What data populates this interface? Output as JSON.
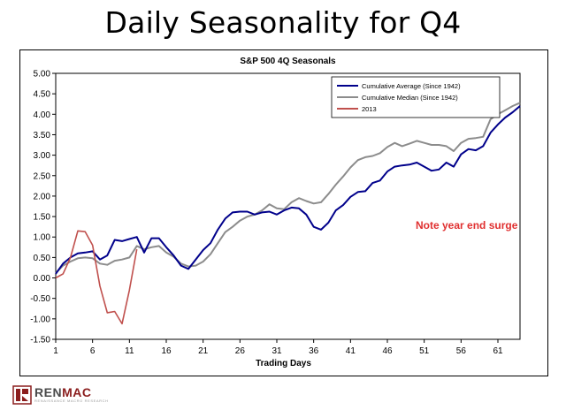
{
  "slide_title": "Daily Seasonality for Q4",
  "logo": {
    "name_part1": "REN",
    "name_part2": "MAC",
    "tagline": "RENAISSANCE MACRO RESEARCH"
  },
  "colors": {
    "average": "#00008b",
    "median": "#8c8c8c",
    "year2013": "#c0504d",
    "annotation": "#e03030"
  },
  "chart_data": {
    "type": "line",
    "title": "S&P 500 4Q Seasonals",
    "xlabel": "Trading Days",
    "ylabel": "",
    "xlim": [
      1,
      64
    ],
    "ylim": [
      -1.5,
      5.0
    ],
    "y_ticks": [
      "5.00",
      "4.50",
      "4.00",
      "3.50",
      "3.00",
      "2.50",
      "2.00",
      "1.50",
      "1.00",
      "0.50",
      "0.00",
      "-0.50",
      "-1.00",
      "-1.50"
    ],
    "x_ticks": [
      "1",
      "6",
      "11",
      "16",
      "21",
      "26",
      "31",
      "36",
      "41",
      "46",
      "51",
      "56",
      "61"
    ],
    "annotation": "Note year end surge",
    "legend": [
      "Cumulative Average (Since 1942)",
      "Cumulative Median (Since 1942)",
      "2013"
    ],
    "series": [
      {
        "name": "Cumulative Average (Since 1942)",
        "x": [
          1,
          2,
          3,
          4,
          5,
          6,
          7,
          8,
          9,
          10,
          11,
          12,
          13,
          14,
          15,
          16,
          17,
          18,
          19,
          20,
          21,
          22,
          23,
          24,
          25,
          26,
          27,
          28,
          29,
          30,
          31,
          32,
          33,
          34,
          35,
          36,
          37,
          38,
          39,
          40,
          41,
          42,
          43,
          44,
          45,
          46,
          47,
          48,
          49,
          50,
          51,
          52,
          53,
          54,
          55,
          56,
          57,
          58,
          59,
          60,
          61,
          62,
          63,
          64
        ],
        "values": [
          0.1,
          0.35,
          0.5,
          0.6,
          0.62,
          0.65,
          0.45,
          0.55,
          0.93,
          0.9,
          0.95,
          1.0,
          0.62,
          0.97,
          0.97,
          0.75,
          0.55,
          0.3,
          0.22,
          0.45,
          0.68,
          0.85,
          1.18,
          1.45,
          1.6,
          1.62,
          1.62,
          1.55,
          1.6,
          1.62,
          1.55,
          1.65,
          1.72,
          1.7,
          1.55,
          1.25,
          1.18,
          1.35,
          1.65,
          1.78,
          1.98,
          2.1,
          2.12,
          2.32,
          2.38,
          2.6,
          2.72,
          2.75,
          2.77,
          2.82,
          2.72,
          2.62,
          2.65,
          2.82,
          2.72,
          3.02,
          3.15,
          3.12,
          3.22,
          3.55,
          3.75,
          3.92,
          4.05,
          4.2
        ]
      },
      {
        "name": "Cumulative Median (Since 1942)",
        "x": [
          1,
          2,
          3,
          4,
          5,
          6,
          7,
          8,
          9,
          10,
          11,
          12,
          13,
          14,
          15,
          16,
          17,
          18,
          19,
          20,
          21,
          22,
          23,
          24,
          25,
          26,
          27,
          28,
          29,
          30,
          31,
          32,
          33,
          34,
          35,
          36,
          37,
          38,
          39,
          40,
          41,
          42,
          43,
          44,
          45,
          46,
          47,
          48,
          49,
          50,
          51,
          52,
          53,
          54,
          55,
          56,
          57,
          58,
          59,
          60,
          61,
          62,
          63,
          64
        ],
        "values": [
          0.12,
          0.3,
          0.4,
          0.48,
          0.5,
          0.48,
          0.35,
          0.32,
          0.42,
          0.45,
          0.5,
          0.78,
          0.7,
          0.75,
          0.78,
          0.62,
          0.52,
          0.35,
          0.28,
          0.3,
          0.4,
          0.58,
          0.85,
          1.12,
          1.25,
          1.4,
          1.5,
          1.55,
          1.65,
          1.8,
          1.7,
          1.68,
          1.85,
          1.95,
          1.88,
          1.82,
          1.85,
          2.05,
          2.28,
          2.48,
          2.7,
          2.88,
          2.95,
          2.98,
          3.05,
          3.2,
          3.3,
          3.22,
          3.28,
          3.35,
          3.3,
          3.25,
          3.25,
          3.22,
          3.1,
          3.3,
          3.4,
          3.42,
          3.45,
          3.88,
          4.0,
          4.1,
          4.2,
          4.28
        ]
      },
      {
        "name": "2013",
        "x": [
          1,
          2,
          3,
          4,
          5,
          6,
          7,
          8,
          9,
          10,
          11,
          12
        ],
        "values": [
          0.0,
          0.1,
          0.5,
          1.15,
          1.13,
          0.8,
          -0.2,
          -0.85,
          -0.82,
          -1.12,
          -0.3,
          0.7
        ]
      }
    ]
  }
}
